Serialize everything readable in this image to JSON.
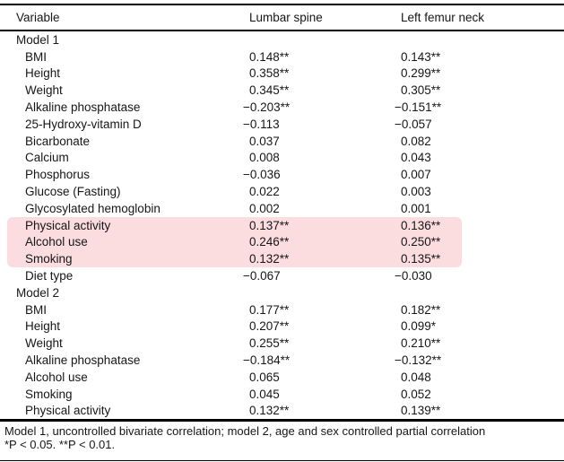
{
  "table": {
    "columns": [
      "Variable",
      "Lumbar spine",
      "Left femur neck"
    ],
    "sections": [
      {
        "label": "Model 1",
        "rows": [
          {
            "variable": "BMI",
            "lumbar": "0.148**",
            "femur": "0.143**",
            "highlight": false
          },
          {
            "variable": "Height",
            "lumbar": "0.358**",
            "femur": "0.299**",
            "highlight": false
          },
          {
            "variable": "Weight",
            "lumbar": "0.345**",
            "femur": "0.305**",
            "highlight": false
          },
          {
            "variable": "Alkaline phosphatase",
            "lumbar": "−0.203**",
            "femur": "−0.151**",
            "highlight": false
          },
          {
            "variable": "25-Hydroxy-vitamin D",
            "lumbar": "−0.113",
            "femur": "−0.057",
            "highlight": false
          },
          {
            "variable": "Bicarbonate",
            "lumbar": "0.037",
            "femur": "0.082",
            "highlight": false
          },
          {
            "variable": "Calcium",
            "lumbar": "0.008",
            "femur": "0.043",
            "highlight": false
          },
          {
            "variable": "Phosphorus",
            "lumbar": "−0.036",
            "femur": "0.007",
            "highlight": false
          },
          {
            "variable": "Glucose (Fasting)",
            "lumbar": "0.022",
            "femur": "0.003",
            "highlight": false
          },
          {
            "variable": "Glycosylated hemoglobin",
            "lumbar": "0.002",
            "femur": "0.001",
            "highlight": false
          },
          {
            "variable": "Physical activity",
            "lumbar": "0.137**",
            "femur": "0.136**",
            "highlight": true
          },
          {
            "variable": "Alcohol use",
            "lumbar": "0.246**",
            "femur": "0.250**",
            "highlight": true
          },
          {
            "variable": "Smoking",
            "lumbar": "0.132**",
            "femur": "0.135**",
            "highlight": true
          },
          {
            "variable": "Diet type",
            "lumbar": "−0.067",
            "femur": "−0.030",
            "highlight": false
          }
        ]
      },
      {
        "label": "Model 2",
        "rows": [
          {
            "variable": "BMI",
            "lumbar": "0.177**",
            "femur": "0.182**",
            "highlight": false
          },
          {
            "variable": "Height",
            "lumbar": "0.207**",
            "femur": "0.099*",
            "highlight": false
          },
          {
            "variable": "Weight",
            "lumbar": "0.255**",
            "femur": "0.210**",
            "highlight": false
          },
          {
            "variable": "Alkaline phosphatase",
            "lumbar": "−0.184**",
            "femur": "−0.132**",
            "highlight": false
          },
          {
            "variable": "Alcohol use",
            "lumbar": "0.065",
            "femur": "0.048",
            "highlight": false
          },
          {
            "variable": "Smoking",
            "lumbar": "0.045",
            "femur": "0.052",
            "highlight": false
          },
          {
            "variable": "Physical activity",
            "lumbar": "0.132**",
            "femur": "0.139**",
            "highlight": false
          }
        ]
      }
    ]
  },
  "footnotes": {
    "line1": "Model 1, uncontrolled bivariate correlation; model 2, age and sex controlled partial correlation",
    "line2": "*P < 0.05. **P < 0.01."
  },
  "colors": {
    "highlight": "#fbdde0",
    "rule": "#000000",
    "text": "#161616"
  }
}
